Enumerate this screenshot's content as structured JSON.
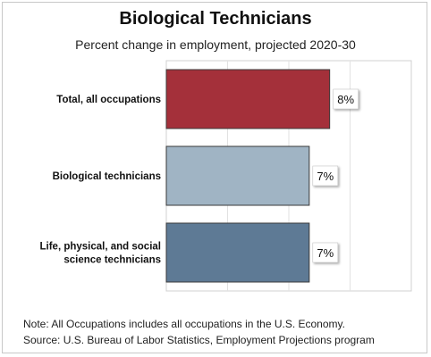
{
  "chart_data": {
    "type": "bar",
    "orientation": "horizontal",
    "title": "Biological Technicians",
    "subtitle": "Percent change in employment, projected 2020-30",
    "categories": [
      "Total, all occupations",
      "Biological technicians",
      "Life, physical, and social science technicians"
    ],
    "category_lines": [
      [
        "Total, all occupations"
      ],
      [
        "Biological technicians"
      ],
      [
        "Life, physical, and social",
        "science technicians"
      ]
    ],
    "values": [
      8,
      7,
      7
    ],
    "value_labels": [
      "8%",
      "7%",
      "7%"
    ],
    "colors": [
      "#a4303a",
      "#a0b4c4",
      "#5e7a95"
    ],
    "xlim": [
      0,
      12
    ],
    "grid": true
  },
  "notes": {
    "note": "Note: All Occupations includes all occupations in the U.S. Economy.",
    "source": "Source: U.S. Bureau of Labor Statistics, Employment Projections program"
  }
}
